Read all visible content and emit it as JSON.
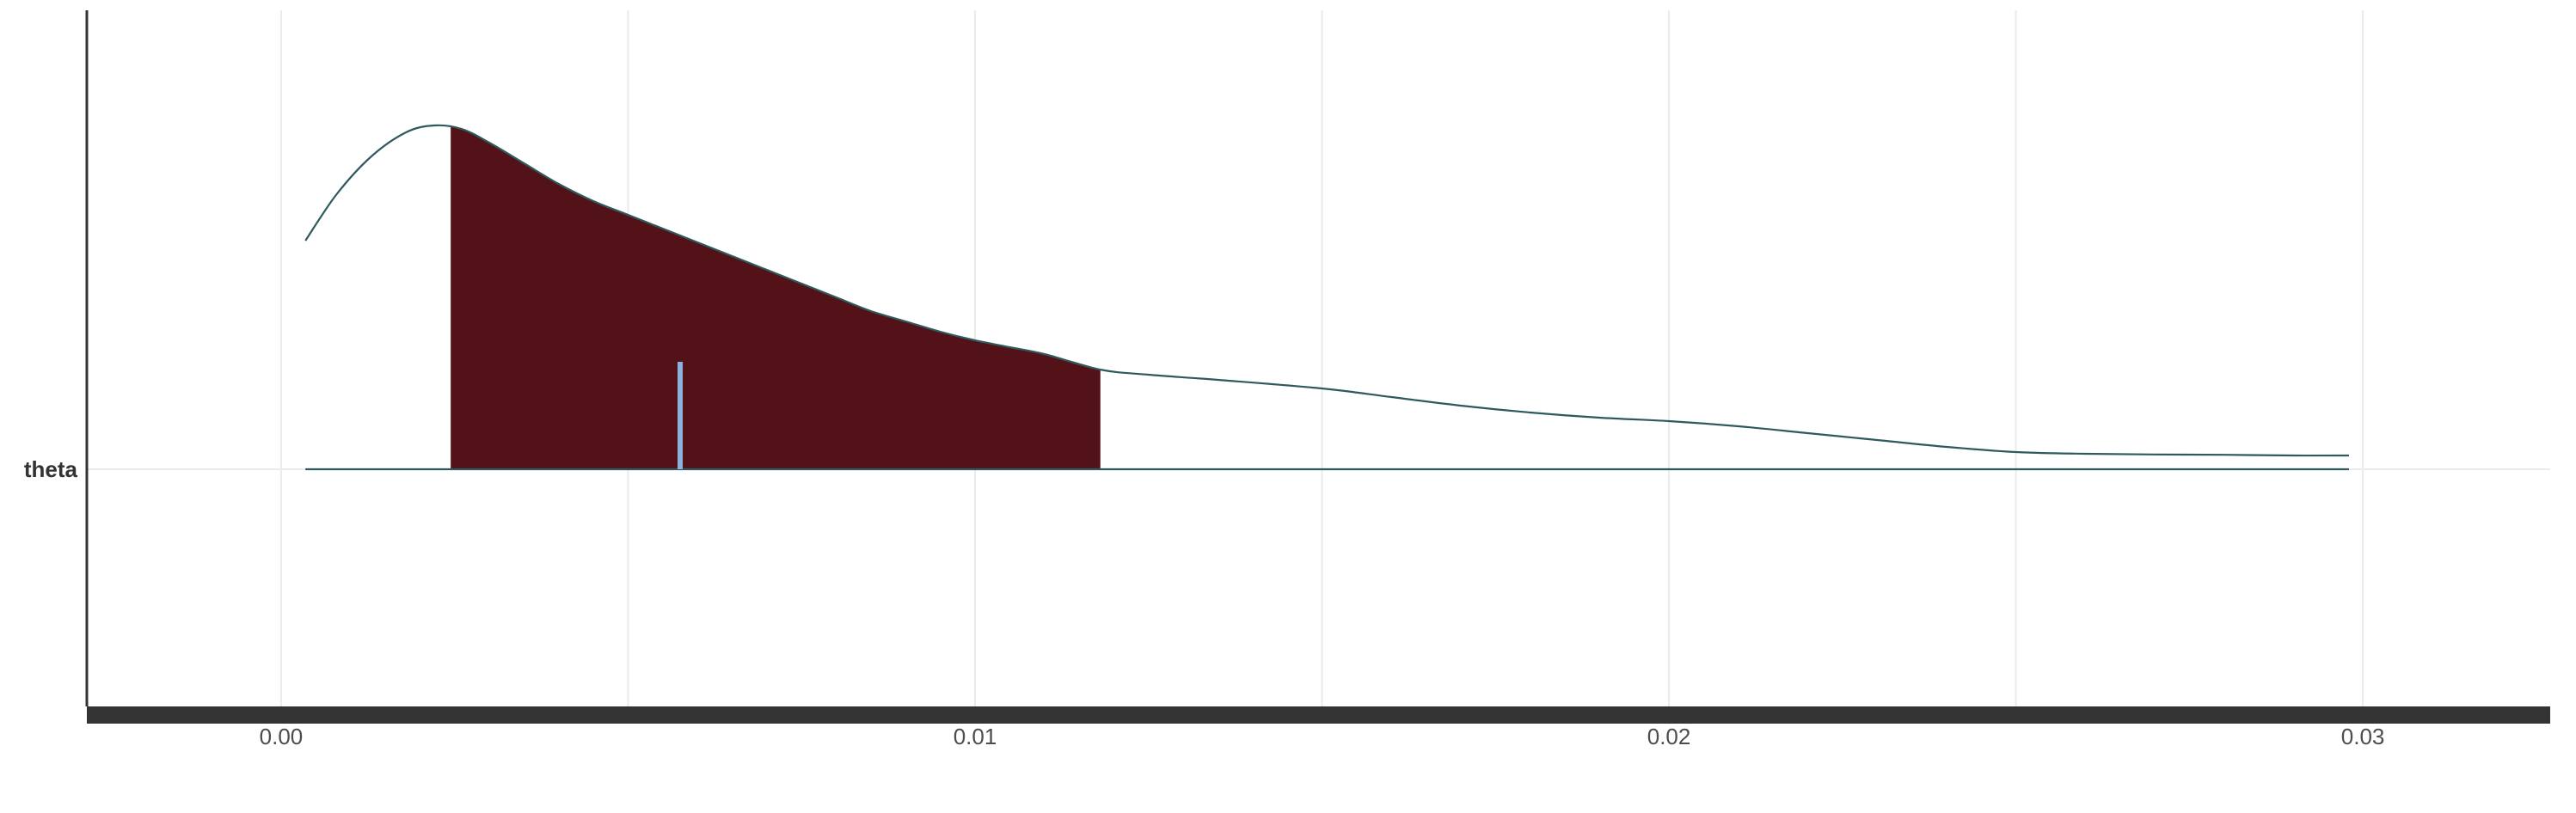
{
  "chart_data": {
    "type": "area",
    "parameter": "theta",
    "xlim": [
      -0.0028,
      0.0327
    ],
    "x_ticks": [
      0.0,
      0.01,
      0.02,
      0.03
    ],
    "x_tick_labels": [
      "0.00",
      "0.01",
      "0.02",
      "0.03"
    ],
    "y_categories": [
      "theta"
    ],
    "grid": true,
    "density": {
      "x": [
        0.00035,
        0.0008,
        0.0013,
        0.0018,
        0.0022,
        0.0026,
        0.003,
        0.0035,
        0.004,
        0.0045,
        0.005,
        0.0055,
        0.006,
        0.0065,
        0.007,
        0.0075,
        0.008,
        0.0085,
        0.009,
        0.0095,
        0.01,
        0.0105,
        0.011,
        0.0118,
        0.0125,
        0.0135,
        0.015,
        0.016,
        0.017,
        0.018,
        0.019,
        0.02,
        0.021,
        0.022,
        0.023,
        0.024,
        0.025,
        0.026,
        0.027,
        0.028,
        0.029,
        0.0298
      ],
      "y": [
        0.665,
        0.8,
        0.91,
        0.98,
        1.0,
        0.99,
        0.95,
        0.89,
        0.83,
        0.78,
        0.74,
        0.7,
        0.66,
        0.62,
        0.58,
        0.54,
        0.5,
        0.46,
        0.43,
        0.4,
        0.375,
        0.355,
        0.335,
        0.29,
        0.275,
        0.26,
        0.235,
        0.21,
        0.185,
        0.165,
        0.15,
        0.14,
        0.125,
        0.105,
        0.085,
        0.065,
        0.05,
        0.045,
        0.043,
        0.042,
        0.04,
        0.04
      ]
    },
    "interval": [
      0.00245,
      0.0118
    ],
    "point_estimate": 0.00575,
    "colors": {
      "interval_fill": "#521218",
      "line": "#2e5a5e",
      "point": "#8db2dd",
      "grid": "#ebebeb",
      "axis": "#333333"
    }
  }
}
